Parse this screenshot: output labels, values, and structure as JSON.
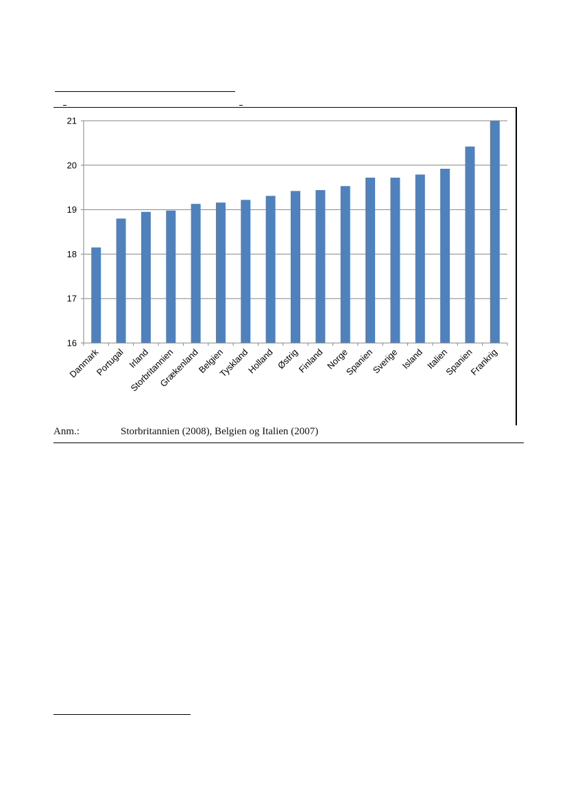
{
  "note": {
    "label": "Anm.:",
    "text": "Storbritannien (2008), Belgien og Italien (2007)"
  },
  "colors": {
    "bar": "#4f81bd",
    "grid": "#868686",
    "axis": "#868686"
  },
  "chart_data": {
    "type": "bar",
    "categories": [
      "Danmark",
      "Portugal",
      "Irland",
      "Storbritannien",
      "Grækenland",
      "Belgien",
      "Tyskland",
      "Holland",
      "Østrig",
      "Finland",
      "Norge",
      "Spanien",
      "Sverige",
      "Island",
      "Italien",
      "Spanien",
      "Frankrig"
    ],
    "values": [
      18.15,
      18.8,
      18.95,
      18.98,
      19.13,
      19.16,
      19.22,
      19.31,
      19.42,
      19.44,
      19.53,
      19.72,
      19.72,
      19.79,
      19.92,
      20.42,
      21.0
    ],
    "yticks": [
      "16",
      "17",
      "18",
      "19",
      "20",
      "21"
    ],
    "ylim": [
      16,
      21
    ],
    "grid": true,
    "legend": "none"
  }
}
